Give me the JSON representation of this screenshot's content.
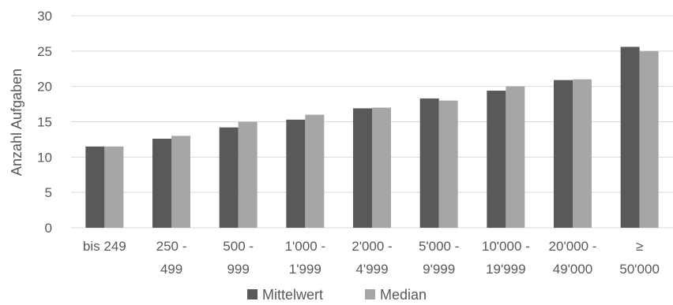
{
  "chart_data": {
    "type": "bar",
    "categories": [
      [
        "bis 249"
      ],
      [
        "250 -",
        "499"
      ],
      [
        "500 -",
        "999"
      ],
      [
        "1'000 -",
        "1'999"
      ],
      [
        "2'000 -",
        "4'999"
      ],
      [
        "5'000 -",
        "9'999"
      ],
      [
        "10'000 -",
        "19'999"
      ],
      [
        "20'000 -",
        "49'000"
      ],
      [
        "≥",
        "50'000"
      ]
    ],
    "series": [
      {
        "name": "Mittelwert",
        "values": [
          11.5,
          12.6,
          14.2,
          15.3,
          16.9,
          18.3,
          19.4,
          20.9,
          25.6
        ],
        "color": "#595959"
      },
      {
        "name": "Median",
        "values": [
          11.5,
          13.0,
          15.0,
          16.0,
          17.0,
          18.0,
          20.0,
          21.0,
          25.0
        ],
        "color": "#a6a6a6"
      }
    ],
    "ylabel": "Anzahl Aufgaben",
    "xlabel": "",
    "ylim": [
      0,
      30
    ],
    "yticks": [
      0,
      5,
      10,
      15,
      20,
      25,
      30
    ],
    "grid": true,
    "legend_position": "bottom"
  }
}
